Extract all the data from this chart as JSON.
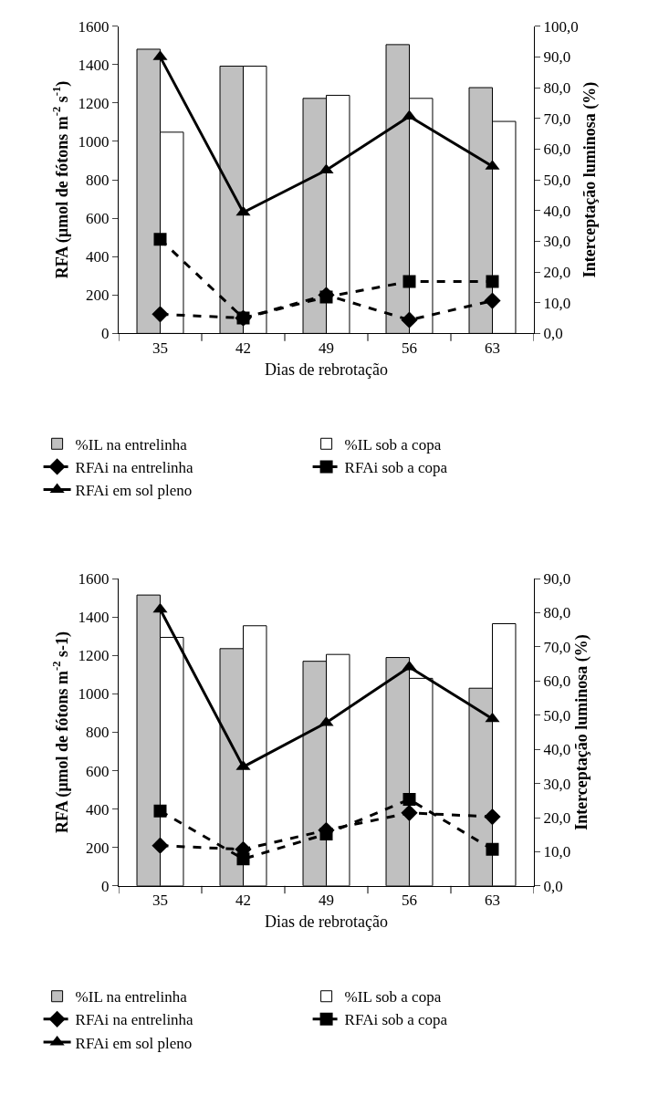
{
  "chart_data": [
    {
      "type": "bar",
      "xlabel": "Dias de rebrotação",
      "ylabel": "RFA (µmol de fótons m$^{-2}$ s$^{-1}$)",
      "y2label": "Interceptação luminosa (%)",
      "categories": [
        "35",
        "42",
        "49",
        "56",
        "63"
      ],
      "ylim": [
        0,
        1600
      ],
      "yticks": [
        0,
        200,
        400,
        600,
        800,
        1000,
        1200,
        1400,
        1600
      ],
      "y2lim": [
        0,
        100
      ],
      "y2ticks": [
        {
          "value": 0,
          "label": "0,0"
        },
        {
          "value": 10,
          "label": "10,0"
        },
        {
          "value": 20,
          "label": "20,0"
        },
        {
          "value": 30,
          "label": "30,0"
        },
        {
          "value": 40,
          "label": "40,0"
        },
        {
          "value": 50,
          "label": "50,0"
        },
        {
          "value": 60,
          "label": "60,0"
        },
        {
          "value": 70,
          "label": "70,0"
        },
        {
          "value": 80,
          "label": "80,0"
        },
        {
          "value": 90,
          "label": "90,0"
        },
        {
          "value": 100,
          "label": "100,0"
        }
      ],
      "legend": "bottom",
      "series": [
        {
          "name": "%IL na entrelinha",
          "axis": "y2",
          "color": "#c0c0c0",
          "values": [
            92.5,
            87.0,
            76.5,
            94.0,
            80.0
          ]
        },
        {
          "name": "%IL sob a copa",
          "axis": "y2",
          "color": "#ffffff",
          "values": [
            65.5,
            87.0,
            77.5,
            76.5,
            69.0
          ]
        },
        {
          "name": "RFAi na entrelinha",
          "type": "line",
          "color": "#000000",
          "marker": "diamond",
          "line_style": "dashed",
          "values": [
            100,
            80,
            200,
            70,
            170
          ]
        },
        {
          "name": "RFAi sob a copa",
          "type": "line",
          "color": "#000000",
          "marker": "square",
          "line_style": "dashed",
          "values": [
            490,
            80,
            190,
            270,
            270
          ]
        },
        {
          "name": "RFAi em sol pleno",
          "type": "line",
          "color": "#000000",
          "marker": "triangle",
          "line_style": "solid",
          "values": [
            1440,
            630,
            850,
            1130,
            870
          ]
        }
      ]
    },
    {
      "type": "bar",
      "xlabel": "Dias de rebrotação",
      "ylabel": "RFA (µmol de fótons m$^{-2}$ s-1)",
      "y2label": "Interceptação luminosa (%)",
      "categories": [
        "35",
        "42",
        "49",
        "56",
        "63"
      ],
      "ylim": [
        0,
        1600
      ],
      "yticks": [
        0,
        200,
        400,
        600,
        800,
        1000,
        1200,
        1400,
        1600
      ],
      "y2lim": [
        0,
        90
      ],
      "y2ticks": [
        {
          "value": 0,
          "label": "0,0"
        },
        {
          "value": 10,
          "label": "10,0"
        },
        {
          "value": 20,
          "label": "20,0"
        },
        {
          "value": 30,
          "label": "30,0"
        },
        {
          "value": 40,
          "label": "40,0"
        },
        {
          "value": 50,
          "label": "50,0"
        },
        {
          "value": 60,
          "label": "60,0"
        },
        {
          "value": 70,
          "label": "70,0"
        },
        {
          "value": 80,
          "label": "80,0"
        },
        {
          "value": 90,
          "label": "90,0"
        }
      ],
      "legend": "bottom",
      "series": [
        {
          "name": "%IL na entrelinha",
          "axis": "y2",
          "color": "#c0c0c0",
          "values": [
            85.2,
            69.5,
            65.8,
            66.9,
            57.9
          ]
        },
        {
          "name": "%IL sob a copa",
          "axis": "y2",
          "color": "#ffffff",
          "values": [
            72.8,
            76.2,
            67.8,
            60.8,
            76.8
          ]
        },
        {
          "name": "RFAi na entrelinha",
          "type": "line",
          "color": "#000000",
          "marker": "diamond",
          "line_style": "dashed",
          "values": [
            210,
            190,
            290,
            380,
            360
          ]
        },
        {
          "name": "RFAi sob a copa",
          "type": "line",
          "color": "#000000",
          "marker": "square",
          "line_style": "dashed",
          "values": [
            390,
            140,
            270,
            450,
            190
          ]
        },
        {
          "name": "RFAi em sol pleno",
          "type": "line",
          "color": "#000000",
          "marker": "triangle",
          "line_style": "solid",
          "values": [
            1440,
            620,
            850,
            1140,
            870
          ]
        }
      ]
    }
  ]
}
